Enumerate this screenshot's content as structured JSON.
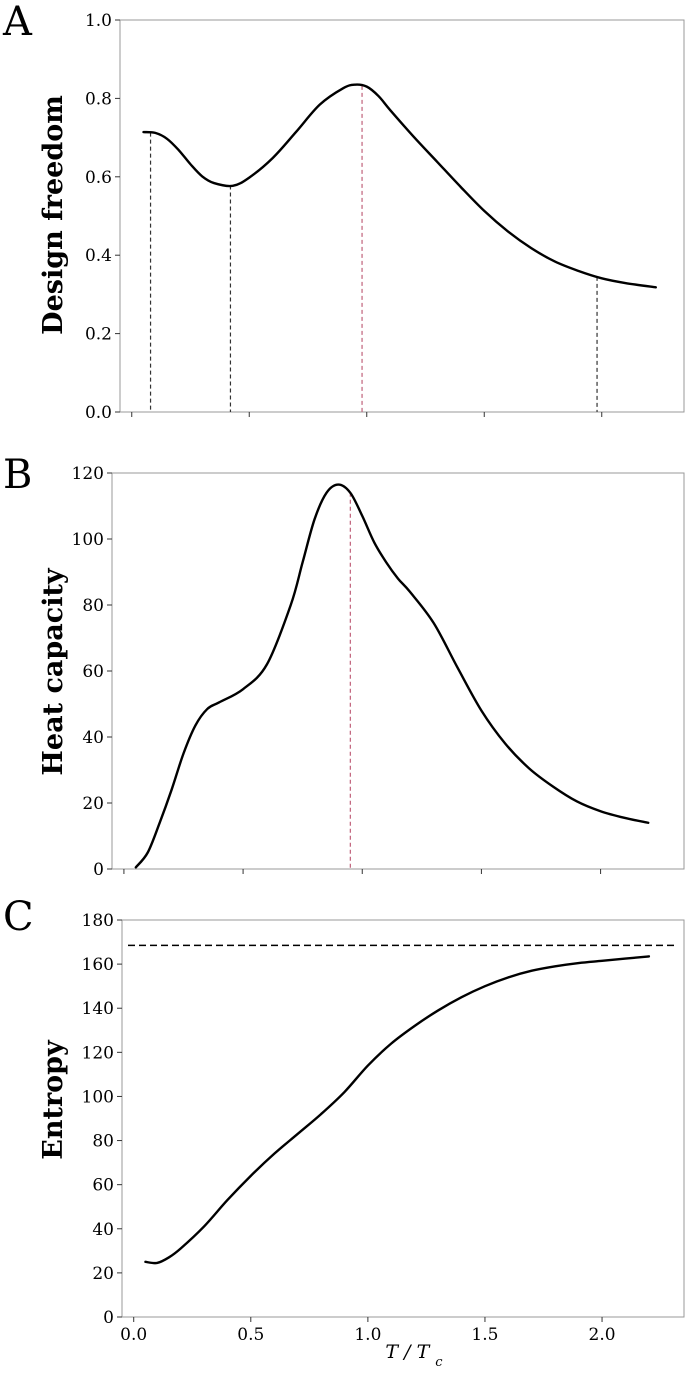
{
  "chart_data": [
    {
      "panel": "A",
      "type": "line",
      "ylabel": "Design freedom",
      "xlim": [
        -0.05,
        2.35
      ],
      "ylim": [
        0.0,
        1.0
      ],
      "yticks": [
        0.0,
        0.2,
        0.4,
        0.6,
        0.8,
        1.0
      ],
      "ytick_labels": [
        "0.0",
        "0.2",
        "0.4",
        "0.6",
        "0.8",
        "1.0"
      ],
      "xticks": [
        0.0,
        0.5,
        1.0,
        1.5,
        2.0
      ],
      "show_xtick_labels": false,
      "series": [
        {
          "x": [
            0.05,
            0.1,
            0.15,
            0.2,
            0.25,
            0.3,
            0.35,
            0.43,
            0.5,
            0.6,
            0.7,
            0.8,
            0.9,
            0.95,
            1.0,
            1.05,
            1.1,
            1.2,
            1.3,
            1.4,
            1.5,
            1.6,
            1.7,
            1.8,
            1.9,
            2.0,
            2.1,
            2.23
          ],
          "y": [
            0.714,
            0.712,
            0.697,
            0.668,
            0.632,
            0.601,
            0.584,
            0.577,
            0.598,
            0.648,
            0.715,
            0.784,
            0.826,
            0.835,
            0.83,
            0.806,
            0.77,
            0.702,
            0.638,
            0.574,
            0.513,
            0.461,
            0.418,
            0.384,
            0.36,
            0.341,
            0.329,
            0.318
          ]
        }
      ],
      "vlines": [
        {
          "x": 0.08,
          "color": "#333333"
        },
        {
          "x": 0.42,
          "color": "#333333"
        },
        {
          "x": 0.98,
          "color": "#c0607a"
        },
        {
          "x": 1.98,
          "color": "#333333"
        }
      ]
    },
    {
      "panel": "B",
      "type": "line",
      "ylabel": "Heat capacity",
      "xlim": [
        -0.05,
        2.35
      ],
      "ylim": [
        0,
        120
      ],
      "yticks": [
        0,
        20,
        40,
        60,
        80,
        100,
        120
      ],
      "ytick_labels": [
        "0",
        "20",
        "40",
        "60",
        "80",
        "100",
        "120"
      ],
      "xticks": [
        0.0,
        0.5,
        1.0,
        1.5,
        2.0
      ],
      "show_xtick_labels": false,
      "series": [
        {
          "x": [
            0.05,
            0.1,
            0.15,
            0.2,
            0.25,
            0.3,
            0.35,
            0.4,
            0.5,
            0.6,
            0.7,
            0.75,
            0.8,
            0.85,
            0.9,
            0.95,
            1.0,
            1.05,
            1.1,
            1.15,
            1.2,
            1.3,
            1.4,
            1.5,
            1.6,
            1.7,
            1.8,
            1.9,
            2.0,
            2.1,
            2.2
          ],
          "y": [
            0.5,
            5,
            14,
            24,
            35,
            43.5,
            48.5,
            50.5,
            54.5,
            62,
            80,
            93,
            106,
            114,
            116.5,
            114,
            107,
            99,
            93,
            88,
            84,
            74.5,
            61,
            48,
            38,
            30.5,
            25,
            20.5,
            17.5,
            15.5,
            14
          ]
        }
      ],
      "vlines": [
        {
          "x": 0.95,
          "color": "#c0607a"
        }
      ]
    },
    {
      "panel": "C",
      "type": "line",
      "ylabel": "Entropy",
      "xlabel": "T / Tc",
      "xlim": [
        -0.05,
        2.35
      ],
      "ylim": [
        0,
        180
      ],
      "yticks": [
        0,
        20,
        40,
        60,
        80,
        100,
        120,
        140,
        160,
        180
      ],
      "ytick_labels": [
        "0",
        "20",
        "40",
        "60",
        "80",
        "100",
        "120",
        "140",
        "160",
        "180"
      ],
      "xticks": [
        0.0,
        0.5,
        1.0,
        1.5,
        2.0
      ],
      "xtick_labels": [
        "0.0",
        "0.5",
        "1.0",
        "1.5",
        "2.0"
      ],
      "show_xtick_labels": true,
      "series": [
        {
          "x": [
            0.05,
            0.1,
            0.15,
            0.2,
            0.3,
            0.4,
            0.5,
            0.6,
            0.7,
            0.8,
            0.9,
            1.0,
            1.1,
            1.2,
            1.3,
            1.4,
            1.5,
            1.6,
            1.7,
            1.8,
            1.9,
            2.0,
            2.1,
            2.2
          ],
          "y": [
            25,
            24.5,
            27,
            31,
            41,
            53,
            64,
            74,
            83,
            92,
            102,
            114,
            124,
            132,
            139,
            145,
            150,
            154,
            157,
            159,
            160.5,
            161.5,
            162.5,
            163.5
          ]
        }
      ],
      "hlines": [
        {
          "y": 168.5,
          "color": "#000000"
        }
      ]
    }
  ]
}
